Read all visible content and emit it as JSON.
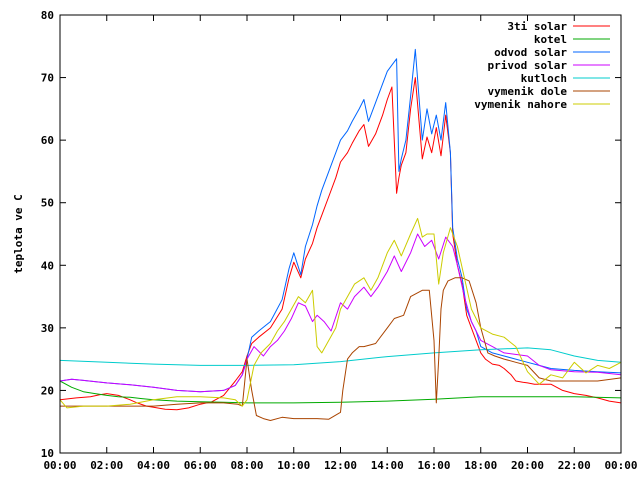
{
  "chart_data": {
    "type": "line",
    "title": "",
    "xlabel": "",
    "ylabel": "teplota ve C",
    "xlim": [
      0,
      24
    ],
    "ylim": [
      10,
      80
    ],
    "x_ticks": [
      0,
      2,
      4,
      6,
      8,
      10,
      12,
      14,
      16,
      18,
      20,
      22,
      24
    ],
    "x_tick_labels": [
      "00:00",
      "02:00",
      "04:00",
      "06:00",
      "08:00",
      "10:00",
      "12:00",
      "14:00",
      "16:00",
      "18:00",
      "20:00",
      "22:00",
      "00:00"
    ],
    "y_ticks": [
      10,
      20,
      30,
      40,
      50,
      60,
      70,
      80
    ],
    "y_tick_labels": [
      "10",
      "20",
      "30",
      "40",
      "50",
      "60",
      "70",
      "80"
    ],
    "grid": false,
    "legend_position": "top-right",
    "series": [
      {
        "name": "3ti solar",
        "color": "#ff0000",
        "x": [
          0,
          0.7,
          1.3,
          1.7,
          2,
          2.5,
          3,
          3.3,
          3.7,
          4,
          4.5,
          5,
          5.5,
          6,
          6.5,
          7,
          7.5,
          7.8,
          8,
          8.2,
          8.5,
          9,
          9.5,
          9.8,
          10,
          10.3,
          10.5,
          10.8,
          11,
          11.2,
          11.5,
          11.8,
          12,
          12.3,
          12.5,
          12.8,
          13,
          13.2,
          13.5,
          13.8,
          14,
          14.2,
          14.4,
          14.5,
          14.6,
          14.8,
          15,
          15.2,
          15.5,
          15.7,
          15.9,
          16.1,
          16.3,
          16.5,
          16.7,
          16.8,
          17,
          17.2,
          17.4,
          17.6,
          17.8,
          18,
          18.2,
          18.5,
          18.8,
          19,
          19.3,
          19.5,
          19.8,
          20,
          20.3,
          20.5,
          21,
          21.5,
          22,
          22.5,
          23,
          23.5,
          24
        ],
        "values": [
          18.5,
          18.8,
          19,
          19.3,
          19.5,
          19.2,
          18.5,
          18,
          17.5,
          17.3,
          17,
          16.9,
          17.2,
          17.8,
          18.2,
          19.2,
          21.5,
          23,
          25.5,
          27.5,
          28.5,
          30,
          33,
          38,
          40.5,
          38,
          41,
          43.5,
          46,
          48,
          51,
          54,
          56.5,
          58,
          59.5,
          61.5,
          62.5,
          59,
          61,
          64,
          66.5,
          68.5,
          51.5,
          54,
          56,
          58,
          65,
          70,
          57,
          60.5,
          58,
          62,
          57.5,
          64,
          58,
          45,
          40,
          37,
          32,
          30,
          28,
          26,
          25,
          24.2,
          24,
          23.5,
          22.5,
          21.5,
          21.3,
          21.2,
          21,
          21,
          21,
          20,
          19.5,
          19.2,
          18.8,
          18.3,
          18
        ]
      },
      {
        "name": "kotel",
        "color": "#00aa00",
        "x": [
          0,
          0.5,
          1,
          1.5,
          2,
          2.5,
          3,
          3.5,
          4,
          5,
          6,
          7,
          8,
          10,
          12,
          14,
          16,
          18,
          20,
          22,
          24
        ],
        "values": [
          21.5,
          20.5,
          19.8,
          19.5,
          19.2,
          19,
          18.9,
          18.7,
          18.5,
          18.3,
          18.2,
          18.1,
          18,
          18,
          18.1,
          18.3,
          18.6,
          19,
          19,
          19,
          18.8
        ]
      },
      {
        "name": "odvod solar",
        "color": "#0066ff",
        "x": [
          0,
          0.5,
          1,
          2,
          3,
          4,
          5,
          6,
          7,
          7.5,
          7.8,
          8,
          8.2,
          8.5,
          9,
          9.5,
          9.8,
          10,
          10.3,
          10.5,
          10.8,
          11,
          11.2,
          11.5,
          11.8,
          12,
          12.3,
          12.5,
          12.8,
          13,
          13.2,
          13.5,
          13.8,
          14,
          14.2,
          14.4,
          14.5,
          14.6,
          14.8,
          15,
          15.2,
          15.5,
          15.7,
          15.9,
          16.1,
          16.3,
          16.5,
          16.7,
          16.8,
          17,
          17.2,
          17.4,
          17.6,
          17.8,
          18,
          18.5,
          19,
          20,
          20.5,
          21,
          22,
          23,
          24
        ],
        "values": [
          21.5,
          21.8,
          21.6,
          21.2,
          20.9,
          20.5,
          20,
          19.8,
          20,
          20.8,
          22.5,
          25,
          28.5,
          29.5,
          31,
          34.5,
          39.5,
          42,
          38.5,
          43,
          46.5,
          49.5,
          52,
          55,
          58,
          60,
          61.5,
          63,
          65,
          66.5,
          63,
          66,
          69,
          71,
          72,
          73,
          55,
          57,
          60,
          67,
          74.5,
          60,
          65,
          61,
          64,
          60,
          66,
          58,
          46,
          41,
          38,
          33,
          31,
          29.5,
          27,
          26,
          25.5,
          24.5,
          24,
          23.5,
          23.2,
          23,
          22.8
        ]
      },
      {
        "name": "privod solar",
        "color": "#cc00ff",
        "x": [
          0,
          0.5,
          1,
          2,
          3,
          4,
          5,
          6,
          7,
          7.5,
          7.8,
          8,
          8.3,
          8.7,
          9,
          9.3,
          9.6,
          9.9,
          10.2,
          10.5,
          10.8,
          11,
          11.3,
          11.6,
          12,
          12.3,
          12.6,
          13,
          13.3,
          13.6,
          14,
          14.3,
          14.6,
          15,
          15.3,
          15.6,
          15.9,
          16.2,
          16.5,
          16.8,
          17,
          17.3,
          17.6,
          18,
          18.5,
          19,
          20,
          20.5,
          21,
          22,
          23,
          24
        ],
        "values": [
          21.5,
          21.8,
          21.6,
          21.2,
          20.9,
          20.5,
          20,
          19.8,
          20,
          20.8,
          22.5,
          25,
          27,
          25.5,
          27,
          28,
          29.5,
          31.5,
          34,
          33.5,
          31,
          32,
          31,
          29.5,
          34,
          33,
          35,
          36.5,
          35,
          36.5,
          39,
          41.5,
          39,
          42,
          45,
          43,
          44,
          41,
          44.5,
          43,
          40,
          35,
          31,
          28,
          27,
          26,
          25.5,
          24,
          23.3,
          23,
          22.9,
          22.5
        ]
      },
      {
        "name": "kutloch",
        "color": "#00cccc",
        "x": [
          0,
          2,
          4,
          6,
          8,
          10,
          12,
          14,
          16,
          18,
          20,
          21,
          22,
          23,
          24
        ],
        "values": [
          24.8,
          24.5,
          24.2,
          24,
          24,
          24.1,
          24.6,
          25.4,
          26,
          26.5,
          26.8,
          26.5,
          25.5,
          24.8,
          24.5
        ]
      },
      {
        "name": "vymenik dole",
        "color": "#aa4400",
        "x": [
          0,
          1,
          2,
          3,
          4,
          5,
          6,
          7,
          7.6,
          7.8,
          8,
          8.2,
          8.4,
          8.7,
          9,
          9.5,
          10,
          10.5,
          11,
          11.5,
          12,
          12.1,
          12.3,
          12.5,
          12.8,
          13,
          13.5,
          14,
          14.3,
          14.7,
          15,
          15.5,
          15.8,
          16,
          16.1,
          16.2,
          16.3,
          16.4,
          16.6,
          16.9,
          17.2,
          17.5,
          17.8,
          18,
          18.3,
          18.6,
          19,
          19.5,
          20,
          20.5,
          21,
          22,
          23,
          24
        ],
        "values": [
          17.5,
          17.5,
          17.5,
          17.5,
          17.5,
          17.8,
          18,
          18,
          17.8,
          17.5,
          25,
          20,
          16,
          15.5,
          15.2,
          15.7,
          15.5,
          15.5,
          15.5,
          15.4,
          16.5,
          20,
          25,
          26,
          27,
          27,
          27.5,
          30,
          31.5,
          32,
          35,
          36,
          36,
          28,
          18,
          25,
          33,
          36,
          37.5,
          38,
          38,
          37.5,
          34,
          30,
          26,
          25.5,
          25,
          24.5,
          24,
          22,
          21.5,
          21.5,
          21.5,
          22
        ]
      },
      {
        "name": "vymenik nahore",
        "color": "#cccc00",
        "x": [
          0,
          0.3,
          1,
          2,
          3,
          4,
          5,
          6,
          7,
          7.5,
          7.8,
          8,
          8.3,
          8.6,
          9,
          9.3,
          9.6,
          9.9,
          10.2,
          10.5,
          10.8,
          11,
          11.2,
          11.5,
          11.8,
          12,
          12.3,
          12.6,
          13,
          13.3,
          13.6,
          14,
          14.3,
          14.6,
          15,
          15.3,
          15.5,
          15.7,
          16,
          16.2,
          16.4,
          16.7,
          17,
          17.3,
          17.6,
          18,
          18.5,
          19,
          19.5,
          20,
          20.5,
          21,
          21.5,
          22,
          22.5,
          23,
          23.5,
          24
        ],
        "values": [
          18.5,
          17.2,
          17.5,
          17.5,
          17.8,
          18.5,
          19,
          19,
          18.8,
          18.5,
          17.5,
          18.5,
          24,
          26,
          27.5,
          29.5,
          31,
          33,
          35,
          34,
          36,
          27,
          26,
          28,
          30,
          33,
          35,
          37,
          38,
          36,
          38,
          42,
          44,
          41.5,
          45,
          47.5,
          44.5,
          45,
          45,
          37,
          42,
          46,
          43,
          38,
          33,
          30,
          29,
          28.5,
          27,
          23,
          21,
          22.5,
          22,
          24.5,
          22.8,
          24,
          23.5,
          24.5
        ]
      }
    ]
  }
}
